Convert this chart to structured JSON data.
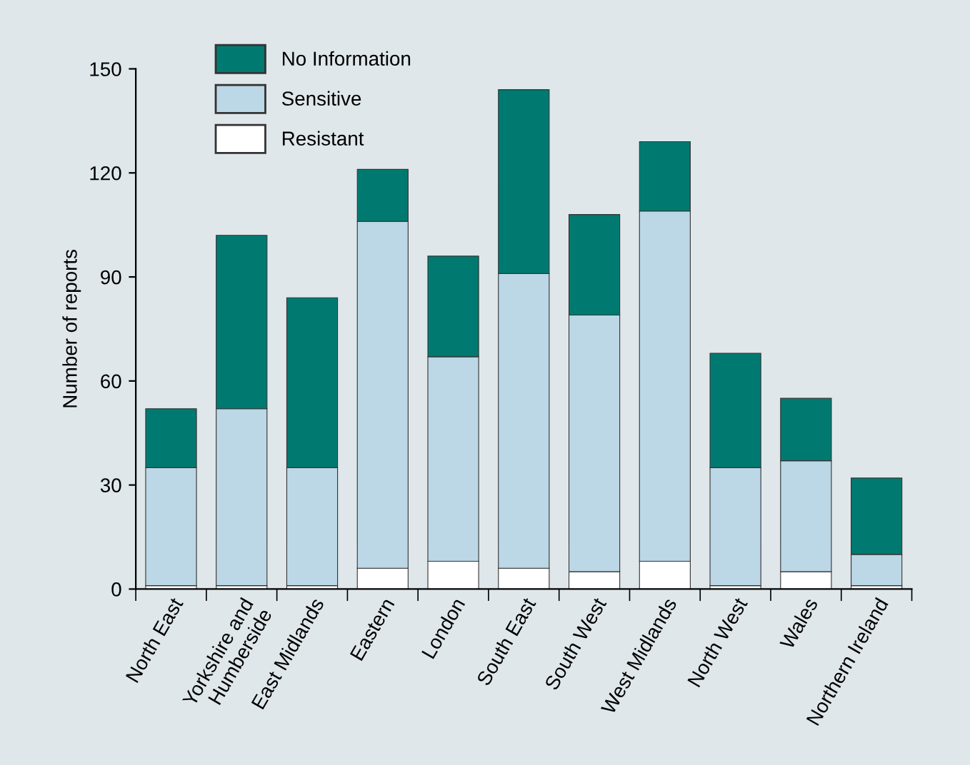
{
  "chart_data": {
    "type": "bar",
    "stacked": true,
    "ylabel": "Number of reports",
    "categories": [
      "North East",
      "Yorkshire and\nHumberside",
      "East Midlands",
      "Eastern",
      "London",
      "South East",
      "South West",
      "West Midlands",
      "North West",
      "Wales",
      "Northern Ireland"
    ],
    "series": [
      {
        "name": "Resistant",
        "color": "#ffffff",
        "values": [
          1,
          1,
          1,
          6,
          8,
          6,
          5,
          8,
          1,
          5,
          1
        ]
      },
      {
        "name": "Sensitive",
        "color": "#bcd7e5",
        "values": [
          34,
          51,
          34,
          100,
          59,
          85,
          74,
          101,
          34,
          32,
          9
        ]
      },
      {
        "name": "No Information",
        "color": "#007a70",
        "values": [
          17,
          50,
          49,
          15,
          29,
          53,
          29,
          20,
          33,
          18,
          22
        ]
      }
    ],
    "ylim": [
      0,
      150
    ],
    "yticks": [
      0,
      30,
      60,
      90,
      120,
      150
    ],
    "grid": false,
    "legend": "top left"
  }
}
